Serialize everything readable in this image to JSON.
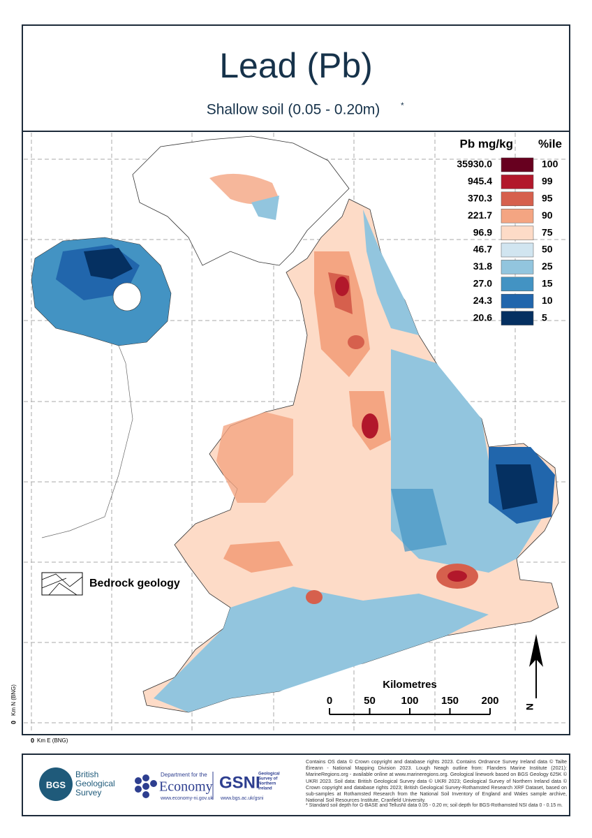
{
  "header": {
    "title": "Lead (Pb)",
    "subtitle": "Shallow soil (0.05 - 0.20m)",
    "subtitle_mark": "*"
  },
  "legend": {
    "value_header": "Pb mg/kg",
    "percentile_header": "%ile",
    "rows": [
      {
        "value": "35930.0",
        "percentile": "100",
        "color": "#67001f"
      },
      {
        "value": "945.4",
        "percentile": "99",
        "color": "#b2182b"
      },
      {
        "value": "370.3",
        "percentile": "95",
        "color": "#d6604d"
      },
      {
        "value": "221.7",
        "percentile": "90",
        "color": "#f4a582"
      },
      {
        "value": "96.9",
        "percentile": "75",
        "color": "#fddbc7"
      },
      {
        "value": "46.7",
        "percentile": "50",
        "color": "#d1e5f0"
      },
      {
        "value": "31.8",
        "percentile": "25",
        "color": "#92c5de"
      },
      {
        "value": "27.0",
        "percentile": "15",
        "color": "#4393c3"
      },
      {
        "value": "24.3",
        "percentile": "10",
        "color": "#2166ac"
      },
      {
        "value": "20.6",
        "percentile": "5",
        "color": "#053061"
      }
    ]
  },
  "geology_label": "Bedrock geology",
  "scale_bar": {
    "title": "Kilometres",
    "ticks": [
      0,
      50,
      100,
      150,
      200
    ]
  },
  "north": "N",
  "axes": {
    "y_origin": "0",
    "y_label": "Km N (BNG)",
    "x_origin": "0",
    "x_label": "Km E (BNG)"
  },
  "footer": {
    "bgs_badge": "BGS",
    "bgs_name": [
      "British",
      "Geological",
      "Survey"
    ],
    "dfe_top": "Department for the",
    "dfe_name": "Economy",
    "dfe_url": "www.economy-ni.gov.uk",
    "gsni": "GSNI",
    "gsni_name": [
      "Geological",
      "Survey of",
      "Northern",
      "Ireland"
    ],
    "gsni_url": "www.bgs.ac.uk/gsni",
    "credits": "Contains OS data © Crown copyright and database rights 2023. Contains Ordnance Survey Ireland data © Tailte Éireann - National Mapping Division 2023. Lough Neagh outline from: Flanders Marine Institute (2021): MarineRegions.org - available online at www.marineregions.org. Geological linework based on BGS Geology 625K © UKRI 2023. Soil data: British Geological Survey data © UKRI 2023; Geological Survey of Northern Ireland data © Crown copyright and database rights 2023; British Geological Survey-Rothamsted Research XRF Dataset, based on sub-samples at Rothamsted Research from the National Soil Inventory of England and Wales sample archive, National Soil Resources Institute, Cranfield University.",
    "footnote": "* Standard soil depth for G-BASE and TellusNI data 0.05 - 0.20 m; soil depth for BGS-Rothamsted NSI data 0 - 0.15 m."
  }
}
